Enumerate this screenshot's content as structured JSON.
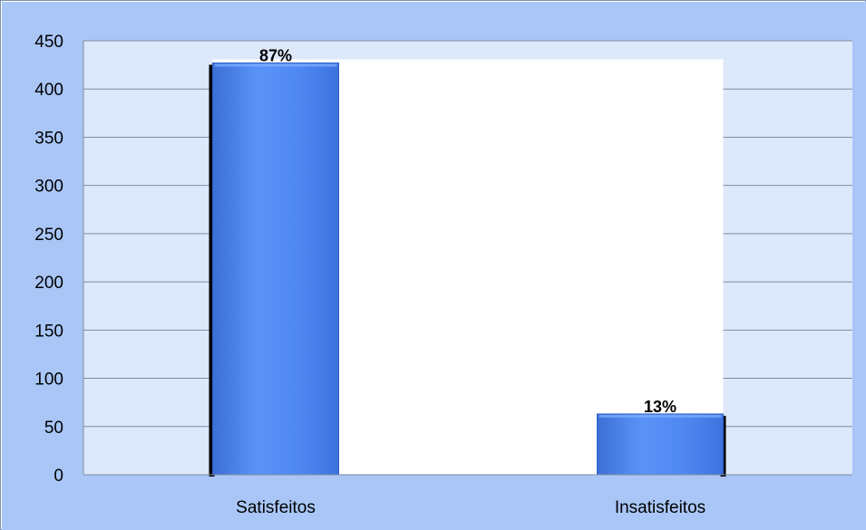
{
  "chart_data": {
    "type": "bar",
    "categories": [
      "Satisfeitos",
      "Insatisfeitos"
    ],
    "values": [
      427,
      63
    ],
    "data_labels": [
      "87%",
      "13%"
    ],
    "title": "",
    "xlabel": "",
    "ylabel": "",
    "ylim": [
      0,
      450
    ],
    "yticks": [
      "0",
      "50",
      "100",
      "150",
      "200",
      "250",
      "300",
      "350",
      "400",
      "450"
    ],
    "grid": true,
    "legend": "none",
    "colors": {
      "bar": "#4f87f2",
      "bar_highlight": "#7fb0ff",
      "bar_shadow": "#000000",
      "background": "#a9c6f7",
      "plot_background": "#dde8fb",
      "gridline": "#7f8c9e"
    }
  }
}
